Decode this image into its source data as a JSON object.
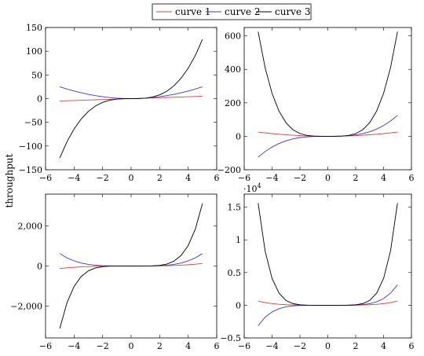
{
  "legend": {
    "entries": [
      {
        "label": "curve 1",
        "color": "#d9434a"
      },
      {
        "label": "curve 2",
        "color": "#3b3bc4"
      },
      {
        "label": "curve 3",
        "color": "#000000"
      }
    ],
    "placement": "top-center"
  },
  "chart_data": [
    {
      "type": "line",
      "panel": "top-left",
      "title": "",
      "xlabel": "",
      "ylabel": "throughput",
      "xlim": [
        -6,
        6
      ],
      "ylim": [
        -150,
        150
      ],
      "xticks": [
        "−6",
        "−4",
        "−2",
        "0",
        "2",
        "4",
        "6"
      ],
      "yticks": [
        "−150",
        "−100",
        "−50",
        "0",
        "50",
        "100",
        "150"
      ],
      "grid": false,
      "x": [
        -5,
        -4.5,
        -4,
        -3.5,
        -3,
        -2.5,
        -2,
        -1.5,
        -1,
        -0.5,
        0,
        0.5,
        1,
        1.5,
        2,
        2.5,
        3,
        3.5,
        4,
        4.5,
        5
      ],
      "series": [
        {
          "name": "curve 1",
          "color": "#d9434a",
          "values": [
            -5,
            -4.5,
            -4,
            -3.5,
            -3,
            -2.5,
            -2,
            -1.5,
            -1,
            -0.5,
            0,
            0.5,
            1,
            1.5,
            2,
            2.5,
            3,
            3.5,
            4,
            4.5,
            5
          ]
        },
        {
          "name": "curve 2",
          "color": "#3b3bc4",
          "values": [
            25,
            20.25,
            16,
            12.25,
            9,
            6.25,
            4,
            2.25,
            1,
            0.25,
            0,
            0.25,
            1,
            2.25,
            4,
            6.25,
            9,
            12.25,
            16,
            20.25,
            25
          ]
        },
        {
          "name": "curve 3",
          "color": "#000000",
          "values": [
            -125,
            -91.1,
            -64,
            -42.9,
            -27,
            -15.6,
            -8,
            -3.4,
            -1,
            -0.1,
            0,
            0.1,
            1,
            3.4,
            8,
            15.6,
            27,
            42.9,
            64,
            91.1,
            125
          ]
        }
      ]
    },
    {
      "type": "line",
      "panel": "top-right",
      "title": "",
      "xlabel": "",
      "ylabel": "",
      "xlim": [
        -6,
        6
      ],
      "ylim": [
        -200,
        650
      ],
      "xticks": [
        "−6",
        "−4",
        "−2",
        "0",
        "2",
        "4",
        "6"
      ],
      "yticks": [
        "−200",
        "0",
        "200",
        "400",
        "600"
      ],
      "grid": false,
      "x": [
        -5,
        -4.5,
        -4,
        -3.5,
        -3,
        -2.5,
        -2,
        -1.5,
        -1,
        -0.5,
        0,
        0.5,
        1,
        1.5,
        2,
        2.5,
        3,
        3.5,
        4,
        4.5,
        5
      ],
      "series": [
        {
          "name": "curve 1",
          "color": "#d9434a",
          "values": [
            25,
            20.25,
            16,
            12.25,
            9,
            6.25,
            4,
            2.25,
            1,
            0.25,
            0,
            0.25,
            1,
            2.25,
            4,
            6.25,
            9,
            12.25,
            16,
            20.25,
            25
          ]
        },
        {
          "name": "curve 2",
          "color": "#3b3bc4",
          "values": [
            -125,
            -91.1,
            -64,
            -42.9,
            -27,
            -15.6,
            -8,
            -3.4,
            -1,
            -0.1,
            0,
            0.1,
            1,
            3.4,
            8,
            15.6,
            27,
            42.9,
            64,
            91.1,
            125
          ]
        },
        {
          "name": "curve 3",
          "color": "#000000",
          "values": [
            625,
            410.1,
            256,
            150.1,
            81,
            39.1,
            16,
            5.1,
            1,
            0.1,
            0,
            0.1,
            1,
            5.1,
            16,
            39.1,
            81,
            150.1,
            256,
            410.1,
            625
          ]
        }
      ]
    },
    {
      "type": "line",
      "panel": "bottom-left",
      "title": "",
      "xlabel": "",
      "ylabel": "",
      "xlim": [
        -6,
        6
      ],
      "ylim": [
        -3600,
        3600
      ],
      "xticks": [
        "−6",
        "−4",
        "−2",
        "0",
        "2",
        "4",
        "6"
      ],
      "yticks": [
        "−2,000",
        "0",
        "2,000"
      ],
      "grid": false,
      "x": [
        -5,
        -4.5,
        -4,
        -3.5,
        -3,
        -2.5,
        -2,
        -1.5,
        -1,
        -0.5,
        0,
        0.5,
        1,
        1.5,
        2,
        2.5,
        3,
        3.5,
        4,
        4.5,
        5
      ],
      "series": [
        {
          "name": "curve 1",
          "color": "#d9434a",
          "values": [
            -125,
            -91.1,
            -64,
            -42.9,
            -27,
            -15.6,
            -8,
            -3.4,
            -1,
            -0.1,
            0,
            0.1,
            1,
            3.4,
            8,
            15.6,
            27,
            42.9,
            64,
            91.1,
            125
          ]
        },
        {
          "name": "curve 2",
          "color": "#3b3bc4",
          "values": [
            625,
            410.1,
            256,
            150.1,
            81,
            39.1,
            16,
            5.1,
            1,
            0.1,
            0,
            0.1,
            1,
            5.1,
            16,
            39.1,
            81,
            150.1,
            256,
            410.1,
            625
          ]
        },
        {
          "name": "curve 3",
          "color": "#000000",
          "values": [
            -3125,
            -1845.3,
            -1024,
            -525.2,
            -243,
            -97.7,
            -32,
            -7.6,
            -1,
            0,
            0,
            0,
            1,
            7.6,
            32,
            97.7,
            243,
            525.2,
            1024,
            1845.3,
            3125
          ]
        }
      ]
    },
    {
      "type": "line",
      "panel": "bottom-right",
      "title": "",
      "xlabel": "",
      "ylabel": "",
      "scale_label": "·10^4",
      "xlim": [
        -6,
        6
      ],
      "ylim": [
        -0.5,
        1.7
      ],
      "xticks": [
        "−6",
        "−4",
        "−2",
        "0",
        "2",
        "4",
        "6"
      ],
      "yticks": [
        "−0.5",
        "0",
        "0.5",
        "1",
        "1.5"
      ],
      "grid": false,
      "x": [
        -5,
        -4.5,
        -4,
        -3.5,
        -3,
        -2.5,
        -2,
        -1.5,
        -1,
        -0.5,
        0,
        0.5,
        1,
        1.5,
        2,
        2.5,
        3,
        3.5,
        4,
        4.5,
        5
      ],
      "series": [
        {
          "name": "curve 1",
          "color": "#d9434a",
          "values": [
            0.0625,
            0.041,
            0.0256,
            0.015,
            0.0081,
            0.0039,
            0.0016,
            0.0005,
            0.0001,
            0,
            0,
            0,
            0.0001,
            0.0005,
            0.0016,
            0.0039,
            0.0081,
            0.015,
            0.0256,
            0.041,
            0.0625
          ]
        },
        {
          "name": "curve 2",
          "color": "#3b3bc4",
          "values": [
            -0.3125,
            -0.1845,
            -0.1024,
            -0.0525,
            -0.0243,
            -0.0098,
            -0.0032,
            -0.0008,
            -0.0001,
            0,
            0,
            0,
            0.0001,
            0.0008,
            0.0032,
            0.0098,
            0.0243,
            0.0525,
            0.1024,
            0.1845,
            0.3125
          ]
        },
        {
          "name": "curve 3",
          "color": "#000000",
          "values": [
            1.5625,
            0.8304,
            0.4096,
            0.1838,
            0.0729,
            0.0244,
            0.0064,
            0.0011,
            0.0001,
            0,
            0,
            0,
            0.0001,
            0.0011,
            0.0064,
            0.0244,
            0.0729,
            0.1838,
            0.4096,
            0.8304,
            1.5625
          ]
        }
      ]
    }
  ]
}
